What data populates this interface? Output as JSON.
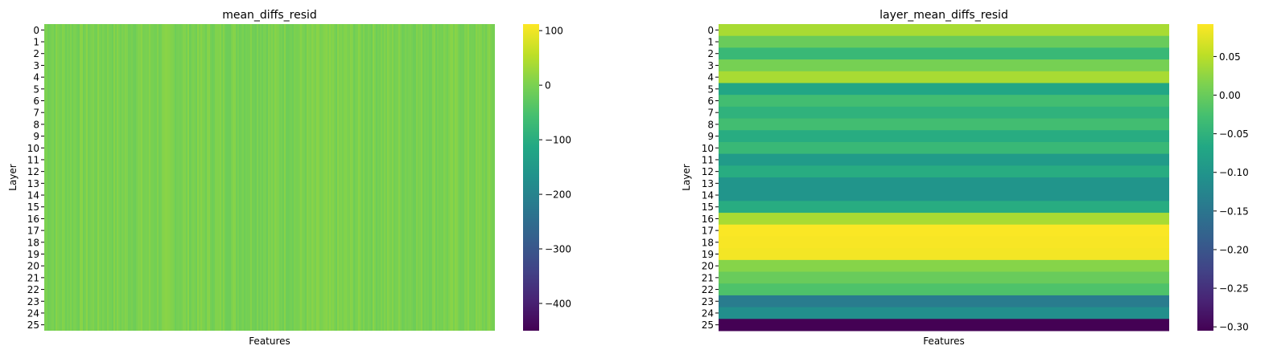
{
  "chart_data": [
    {
      "type": "heatmap",
      "title": "mean_diffs_resid",
      "xlabel": "Features",
      "ylabel": "Layer",
      "rows": [
        "0",
        "1",
        "2",
        "3",
        "4",
        "5",
        "6",
        "7",
        "8",
        "9",
        "10",
        "11",
        "12",
        "13",
        "14",
        "15",
        "16",
        "17",
        "18",
        "19",
        "20",
        "21",
        "22",
        "23",
        "24",
        "25"
      ],
      "colormap": "viridis",
      "value_range": [
        -450,
        112
      ],
      "colorbar_ticks": [
        100,
        0,
        -100,
        -200,
        -300,
        -400
      ],
      "colorbar_tick_labels": [
        "100",
        "0",
        "−100",
        "−200",
        "−300",
        "−400"
      ],
      "typical_cell_value": 0
    },
    {
      "type": "heatmap",
      "title": "layer_mean_diffs_resid",
      "xlabel": "Features",
      "ylabel": "Layer",
      "rows": [
        "0",
        "1",
        "2",
        "3",
        "4",
        "5",
        "6",
        "7",
        "8",
        "9",
        "10",
        "11",
        "12",
        "13",
        "14",
        "15",
        "16",
        "17",
        "18",
        "19",
        "20",
        "21",
        "22",
        "23",
        "24",
        "25"
      ],
      "colormap": "viridis",
      "value_range": [
        -0.305,
        0.092
      ],
      "colorbar_ticks": [
        0.05,
        0.0,
        -0.05,
        -0.1,
        -0.15,
        -0.2,
        -0.25,
        -0.3
      ],
      "colorbar_tick_labels": [
        "0.05",
        "0.00",
        "−0.05",
        "−0.10",
        "−0.15",
        "−0.20",
        "−0.25",
        "−0.30"
      ],
      "row_values": [
        0.04,
        0.0,
        -0.04,
        0.01,
        0.04,
        -0.07,
        -0.03,
        -0.05,
        -0.03,
        -0.06,
        -0.04,
        -0.09,
        -0.06,
        -0.1,
        -0.1,
        -0.06,
        0.04,
        0.09,
        0.088,
        0.086,
        0.02,
        0.0,
        -0.02,
        -0.14,
        -0.11,
        -0.305
      ]
    }
  ]
}
